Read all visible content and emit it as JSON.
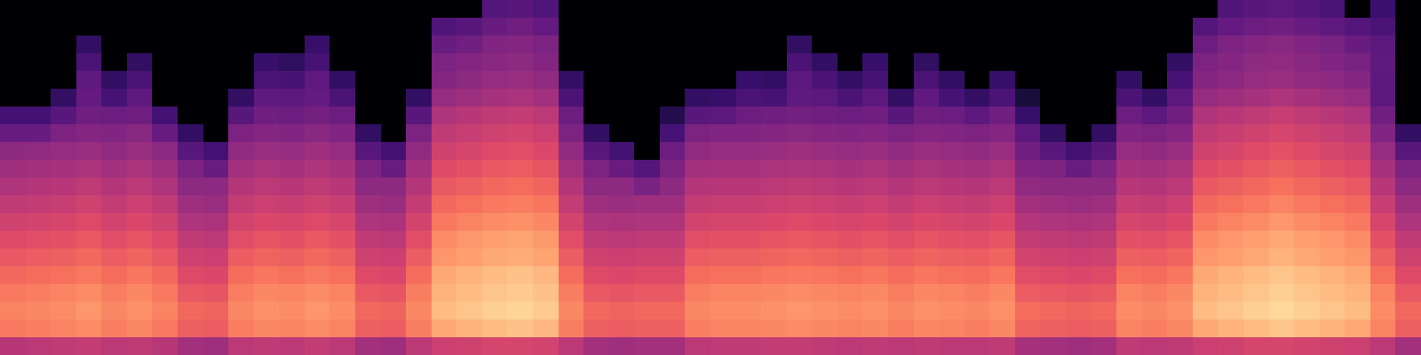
{
  "chart_data": {
    "type": "heatmap",
    "tick_labels": false,
    "zlim": [
      0,
      100
    ],
    "cells": [
      [
        0,
        0,
        0,
        0,
        0,
        0,
        0,
        0,
        0,
        0,
        0,
        0,
        0,
        0,
        0,
        0,
        0,
        0,
        0,
        26,
        27,
        25,
        0,
        0,
        0,
        0,
        0,
        0,
        0,
        0,
        0,
        0,
        0,
        0,
        0,
        0,
        0,
        0,
        0,
        0,
        0,
        0,
        0,
        0,
        0,
        0,
        0,
        0,
        25,
        27,
        28,
        26,
        24,
        0,
        20,
        0
      ],
      [
        0,
        0,
        0,
        0,
        0,
        0,
        0,
        0,
        0,
        0,
        0,
        0,
        0,
        0,
        0,
        0,
        0,
        25,
        27,
        31,
        33,
        30,
        0,
        0,
        0,
        0,
        0,
        0,
        0,
        0,
        0,
        0,
        0,
        0,
        0,
        0,
        0,
        0,
        0,
        0,
        0,
        0,
        0,
        0,
        0,
        0,
        0,
        26,
        30,
        32,
        33,
        31,
        29,
        26,
        24,
        0
      ],
      [
        0,
        0,
        0,
        18,
        0,
        0,
        0,
        0,
        0,
        0,
        0,
        0,
        19,
        0,
        0,
        0,
        0,
        31,
        33,
        37,
        38,
        36,
        0,
        0,
        0,
        0,
        0,
        0,
        0,
        0,
        0,
        18,
        0,
        0,
        0,
        0,
        0,
        0,
        0,
        0,
        0,
        0,
        0,
        0,
        0,
        0,
        0,
        32,
        36,
        38,
        39,
        37,
        35,
        31,
        28,
        0
      ],
      [
        0,
        0,
        0,
        24,
        0,
        18,
        0,
        0,
        0,
        0,
        19,
        17,
        23,
        0,
        0,
        0,
        0,
        36,
        38,
        39,
        40,
        38,
        0,
        0,
        0,
        0,
        0,
        0,
        0,
        0,
        0,
        24,
        18,
        0,
        19,
        0,
        18,
        0,
        0,
        0,
        0,
        0,
        0,
        0,
        0,
        0,
        18,
        36,
        38,
        40,
        41,
        39,
        37,
        35,
        29,
        0
      ],
      [
        0,
        0,
        0,
        29,
        18,
        24,
        0,
        0,
        0,
        0,
        24,
        23,
        29,
        18,
        0,
        0,
        0,
        38,
        40,
        42,
        43,
        41,
        18,
        0,
        0,
        0,
        0,
        0,
        0,
        19,
        18,
        28,
        24,
        18,
        23,
        0,
        24,
        18,
        0,
        19,
        0,
        0,
        0,
        0,
        18,
        0,
        23,
        38,
        40,
        42,
        43,
        41,
        40,
        38,
        28,
        0
      ],
      [
        0,
        0,
        18,
        30,
        23,
        29,
        0,
        0,
        0,
        18,
        29,
        28,
        30,
        24,
        0,
        0,
        18,
        42,
        44,
        46,
        47,
        45,
        24,
        0,
        0,
        0,
        0,
        18,
        19,
        24,
        23,
        29,
        28,
        24,
        28,
        18,
        29,
        23,
        18,
        24,
        11,
        0,
        0,
        0,
        24,
        18,
        28,
        42,
        44,
        46,
        48,
        46,
        44,
        42,
        28,
        0
      ],
      [
        22,
        22,
        27,
        33,
        32,
        33,
        22,
        0,
        0,
        27,
        33,
        32,
        34,
        32,
        0,
        0,
        27,
        48,
        50,
        52,
        53,
        51,
        32,
        0,
        0,
        0,
        14,
        27,
        28,
        32,
        33,
        34,
        33,
        32,
        33,
        27,
        33,
        32,
        28,
        33,
        19,
        0,
        0,
        0,
        32,
        28,
        33,
        48,
        50,
        52,
        54,
        52,
        50,
        48,
        33,
        0
      ],
      [
        31,
        31,
        36,
        38,
        37,
        39,
        31,
        18,
        0,
        36,
        38,
        37,
        39,
        37,
        18,
        0,
        36,
        52,
        54,
        56,
        57,
        55,
        36,
        18,
        0,
        0,
        23,
        36,
        37,
        37,
        38,
        39,
        38,
        37,
        38,
        36,
        38,
        37,
        36,
        38,
        28,
        18,
        0,
        18,
        37,
        36,
        38,
        52,
        54,
        56,
        58,
        56,
        54,
        52,
        37,
        18
      ],
      [
        40,
        41,
        42,
        43,
        41,
        43,
        40,
        27,
        22,
        41,
        43,
        42,
        44,
        42,
        27,
        22,
        41,
        56,
        58,
        60,
        61,
        59,
        41,
        27,
        22,
        0,
        32,
        41,
        42,
        42,
        43,
        44,
        43,
        42,
        43,
        41,
        43,
        42,
        41,
        43,
        33,
        27,
        22,
        27,
        42,
        41,
        43,
        56,
        58,
        60,
        62,
        60,
        58,
        56,
        42,
        27
      ],
      [
        44,
        45,
        46,
        47,
        45,
        47,
        44,
        36,
        31,
        45,
        47,
        46,
        48,
        46,
        36,
        31,
        45,
        60,
        62,
        64,
        65,
        63,
        45,
        36,
        31,
        26,
        36,
        45,
        46,
        46,
        47,
        48,
        47,
        46,
        47,
        45,
        47,
        46,
        45,
        47,
        37,
        36,
        31,
        36,
        46,
        45,
        47,
        60,
        62,
        64,
        66,
        64,
        62,
        60,
        46,
        36
      ],
      [
        48,
        49,
        50,
        52,
        49,
        51,
        48,
        40,
        40,
        49,
        51,
        50,
        52,
        50,
        40,
        40,
        49,
        64,
        66,
        68,
        69,
        67,
        49,
        40,
        40,
        35,
        40,
        49,
        50,
        50,
        51,
        52,
        51,
        50,
        51,
        49,
        51,
        50,
        49,
        51,
        41,
        40,
        40,
        40,
        50,
        49,
        51,
        64,
        66,
        68,
        70,
        68,
        66,
        64,
        50,
        40
      ],
      [
        52,
        53,
        54,
        56,
        53,
        55,
        52,
        44,
        43,
        53,
        55,
        54,
        56,
        54,
        44,
        43,
        53,
        68,
        70,
        72,
        73,
        71,
        53,
        44,
        43,
        44,
        44,
        53,
        54,
        54,
        55,
        56,
        55,
        54,
        55,
        53,
        55,
        54,
        53,
        55,
        45,
        44,
        43,
        44,
        54,
        53,
        55,
        68,
        70,
        72,
        74,
        72,
        70,
        68,
        54,
        44
      ],
      [
        56,
        57,
        58,
        60,
        57,
        59,
        56,
        48,
        47,
        57,
        59,
        58,
        60,
        58,
        48,
        47,
        57,
        72,
        74,
        76,
        77,
        75,
        57,
        48,
        47,
        48,
        48,
        57,
        58,
        58,
        59,
        60,
        59,
        58,
        59,
        57,
        59,
        58,
        57,
        59,
        49,
        48,
        47,
        48,
        58,
        57,
        59,
        72,
        74,
        76,
        78,
        76,
        74,
        72,
        58,
        48
      ],
      [
        60,
        61,
        62,
        64,
        61,
        63,
        60,
        52,
        51,
        61,
        63,
        62,
        64,
        62,
        52,
        51,
        61,
        76,
        78,
        80,
        81,
        79,
        61,
        52,
        51,
        52,
        52,
        61,
        62,
        62,
        63,
        64,
        63,
        62,
        63,
        61,
        63,
        62,
        61,
        63,
        53,
        52,
        51,
        52,
        62,
        61,
        63,
        76,
        78,
        80,
        82,
        80,
        78,
        76,
        62,
        52
      ],
      [
        64,
        65,
        66,
        68,
        65,
        67,
        64,
        56,
        55,
        65,
        67,
        66,
        68,
        66,
        56,
        55,
        65,
        78,
        80,
        82,
        83,
        81,
        65,
        56,
        55,
        56,
        56,
        65,
        66,
        66,
        67,
        68,
        67,
        66,
        67,
        65,
        67,
        66,
        65,
        67,
        57,
        56,
        55,
        56,
        66,
        65,
        67,
        78,
        80,
        82,
        84,
        82,
        80,
        78,
        66,
        56
      ],
      [
        68,
        69,
        70,
        72,
        69,
        71,
        68,
        60,
        59,
        69,
        71,
        70,
        72,
        70,
        60,
        59,
        69,
        82,
        84,
        86,
        87,
        85,
        69,
        60,
        59,
        60,
        60,
        69,
        70,
        70,
        71,
        72,
        71,
        70,
        71,
        69,
        71,
        70,
        69,
        71,
        61,
        60,
        59,
        60,
        70,
        69,
        71,
        82,
        84,
        86,
        88,
        86,
        84,
        82,
        70,
        60
      ],
      [
        72,
        73,
        74,
        76,
        73,
        75,
        72,
        64,
        63,
        73,
        75,
        74,
        76,
        74,
        64,
        63,
        73,
        84,
        86,
        88,
        89,
        87,
        73,
        64,
        63,
        64,
        64,
        73,
        74,
        74,
        75,
        76,
        75,
        74,
        75,
        73,
        75,
        74,
        73,
        75,
        65,
        64,
        63,
        64,
        74,
        73,
        75,
        84,
        86,
        88,
        90,
        88,
        86,
        84,
        74,
        64
      ],
      [
        74,
        75,
        76,
        78,
        75,
        77,
        74,
        68,
        67,
        75,
        77,
        76,
        78,
        76,
        68,
        67,
        75,
        86,
        88,
        90,
        91,
        89,
        75,
        68,
        67,
        68,
        68,
        75,
        76,
        76,
        77,
        78,
        77,
        76,
        77,
        75,
        77,
        76,
        75,
        77,
        69,
        68,
        67,
        68,
        76,
        75,
        77,
        86,
        88,
        90,
        92,
        90,
        88,
        86,
        76,
        68
      ],
      [
        72,
        73,
        74,
        76,
        73,
        75,
        72,
        66,
        65,
        73,
        75,
        74,
        76,
        74,
        66,
        65,
        73,
        82,
        84,
        86,
        87,
        85,
        73,
        66,
        65,
        66,
        66,
        73,
        74,
        74,
        75,
        76,
        75,
        74,
        75,
        73,
        75,
        74,
        73,
        75,
        67,
        66,
        65,
        66,
        74,
        73,
        75,
        82,
        84,
        86,
        88,
        86,
        84,
        82,
        74,
        66
      ],
      [
        50,
        51,
        52,
        53,
        51,
        52,
        50,
        45,
        44,
        51,
        52,
        51,
        53,
        51,
        45,
        44,
        51,
        55,
        56,
        58,
        58,
        57,
        51,
        45,
        44,
        45,
        45,
        51,
        52,
        52,
        53,
        53,
        52,
        51,
        52,
        51,
        52,
        51,
        51,
        52,
        46,
        45,
        44,
        45,
        52,
        51,
        52,
        55,
        56,
        58,
        58,
        57,
        56,
        55,
        51,
        45
      ]
    ]
  }
}
